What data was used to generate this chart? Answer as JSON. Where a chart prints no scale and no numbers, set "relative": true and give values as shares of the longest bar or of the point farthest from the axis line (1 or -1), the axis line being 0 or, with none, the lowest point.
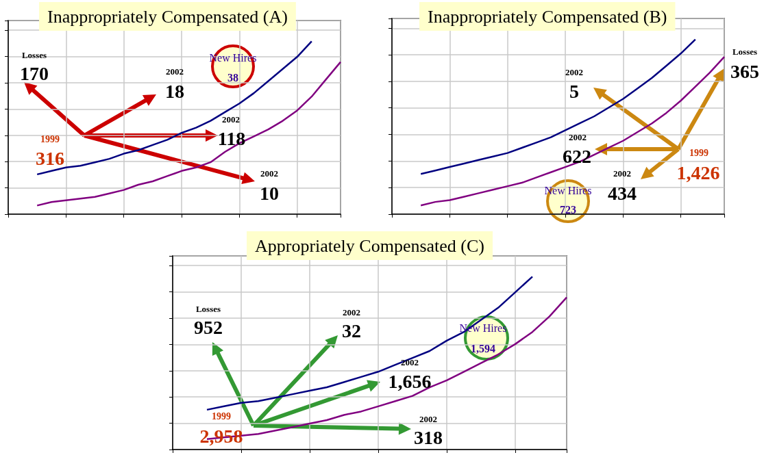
{
  "chart_data": [
    {
      "type": "line",
      "title": "Inappropriately Compensated (A)",
      "relative": true,
      "grid": true,
      "marker": "none",
      "line_style": "solid",
      "categories": [
        null,
        null,
        null,
        null,
        null,
        null,
        null,
        null,
        null,
        null,
        null,
        null,
        null,
        null,
        null,
        null,
        null,
        null,
        null,
        null,
        null,
        null,
        null,
        null
      ],
      "series": [
        {
          "color": "#000080",
          "values": [
            null,
            null,
            0.23,
            0.25,
            0.27,
            0.28,
            0.3,
            0.32,
            0.35,
            0.37,
            0.4,
            0.43,
            0.47,
            0.5,
            0.54,
            0.59,
            0.64,
            0.7,
            0.77,
            0.84,
            0.91,
            1,
            null,
            null
          ]
        },
        {
          "color": "#800080",
          "values": [
            null,
            null,
            0.05,
            0.07,
            0.08,
            0.09,
            0.1,
            0.12,
            0.14,
            0.17,
            0.19,
            0.22,
            0.25,
            0.27,
            0.3,
            0.36,
            0.41,
            0.45,
            0.49,
            0.54,
            0.6,
            0.68,
            0.78,
            0.88
          ]
        }
      ],
      "annotations": [
        "Losses",
        "170",
        "2002",
        "18",
        "New Hires",
        "38",
        "2002",
        "118",
        "1999",
        "316",
        "2002",
        "10"
      ]
    },
    {
      "type": "line",
      "title": "Inappropriately Compensated (B)",
      "relative": true,
      "grid": true,
      "marker": "none",
      "line_style": "solid",
      "categories": [
        null,
        null,
        null,
        null,
        null,
        null,
        null,
        null,
        null,
        null,
        null,
        null,
        null,
        null,
        null,
        null,
        null,
        null,
        null,
        null,
        null,
        null,
        null,
        null
      ],
      "series": [
        {
          "color": "#000080",
          "values": [
            null,
            null,
            0.23,
            0.25,
            0.27,
            0.29,
            0.31,
            0.33,
            0.35,
            0.38,
            0.41,
            0.44,
            0.48,
            0.52,
            0.56,
            0.61,
            0.66,
            0.72,
            0.78,
            0.85,
            0.92,
            1,
            null,
            null
          ]
        },
        {
          "color": "#800080",
          "values": [
            null,
            null,
            0.05,
            0.07,
            0.08,
            0.1,
            0.12,
            0.14,
            0.16,
            0.18,
            0.21,
            0.24,
            0.27,
            0.3,
            0.34,
            0.38,
            0.42,
            0.47,
            0.52,
            0.58,
            0.65,
            0.73,
            0.81,
            0.9
          ]
        }
      ],
      "annotations": [
        "2002",
        "5",
        "2002",
        "622",
        "2002",
        "434",
        "New Hires",
        "723",
        "1999",
        "1,426",
        "Losses",
        "365"
      ]
    },
    {
      "type": "line",
      "title": "Appropriately Compensated (C)",
      "relative": true,
      "grid": true,
      "marker": "none",
      "line_style": "solid",
      "categories": [
        null,
        null,
        null,
        null,
        null,
        null,
        null,
        null,
        null,
        null,
        null,
        null,
        null,
        null,
        null,
        null,
        null,
        null,
        null,
        null,
        null,
        null,
        null,
        null
      ],
      "series": [
        {
          "color": "#000080",
          "values": [
            null,
            null,
            0.23,
            0.25,
            0.27,
            0.28,
            0.3,
            0.32,
            0.34,
            0.36,
            0.39,
            0.42,
            0.45,
            0.49,
            0.53,
            0.57,
            0.63,
            0.68,
            0.75,
            0.82,
            0.91,
            1,
            null,
            null
          ]
        },
        {
          "color": "#800080",
          "values": [
            null,
            null,
            0.06,
            0.07,
            0.08,
            0.09,
            0.11,
            0.13,
            0.15,
            0.17,
            0.2,
            0.22,
            0.25,
            0.28,
            0.31,
            0.36,
            0.4,
            0.45,
            0.5,
            0.55,
            0.61,
            0.68,
            0.77,
            0.88
          ]
        }
      ],
      "annotations": [
        "Losses",
        "952",
        "2002",
        "32",
        "2002",
        "1,656",
        "New Hires",
        "1,594",
        "1999",
        "2,958",
        "2002",
        "318"
      ]
    }
  ]
}
